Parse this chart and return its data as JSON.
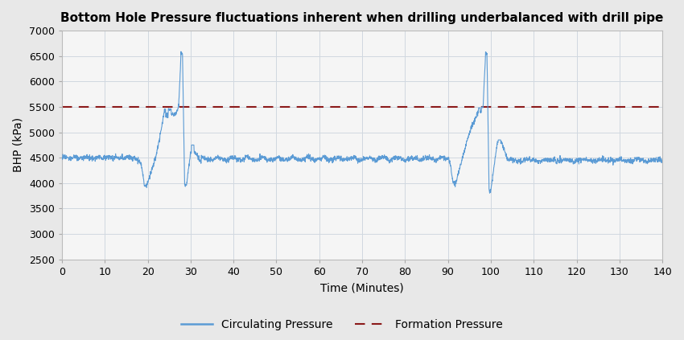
{
  "title": "Bottom Hole Pressure fluctuations inherent when drilling underbalanced with drill pipe",
  "xlabel": "Time (Minutes)",
  "ylabel": "BHP (kPa)",
  "xlim": [
    0,
    140
  ],
  "ylim": [
    2500,
    7000
  ],
  "xticks": [
    0,
    10,
    20,
    30,
    40,
    50,
    60,
    70,
    80,
    90,
    100,
    110,
    120,
    130,
    140
  ],
  "yticks": [
    2500,
    3000,
    3500,
    4000,
    4500,
    5000,
    5500,
    6000,
    6500,
    7000
  ],
  "formation_pressure": 5500,
  "line_color": "#5B9BD5",
  "formation_color": "#8B1A1A",
  "bg_color": "#E8E8E8",
  "plot_bg_color": "#F5F5F5",
  "grid_color": "#D0D8E0",
  "title_fontsize": 11,
  "label_fontsize": 10,
  "tick_fontsize": 9,
  "legend_fontsize": 10
}
